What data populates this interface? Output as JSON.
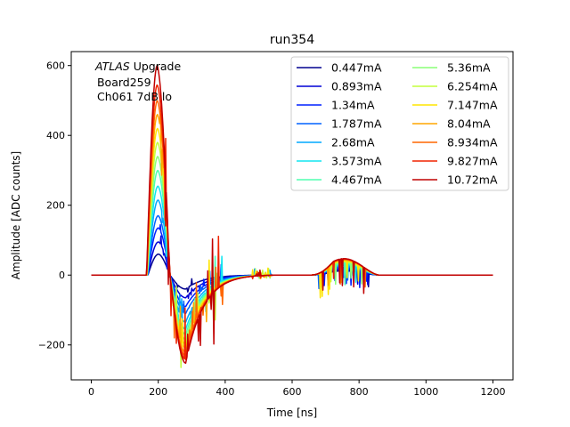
{
  "chart_data": {
    "type": "line",
    "title": "run354",
    "xlabel": "Time [ns]",
    "ylabel": "Amplitude [ADC counts]",
    "xlim": [
      -60,
      1260
    ],
    "ylim": [
      -300,
      640
    ],
    "xticks": [
      0,
      200,
      400,
      600,
      800,
      1000,
      1200
    ],
    "yticks": [
      -200,
      0,
      200,
      400,
      600
    ],
    "xtick_labels": [
      "0",
      "200",
      "400",
      "600",
      "800",
      "1000",
      "1200"
    ],
    "ytick_labels": [
      "−200",
      "0",
      "200",
      "400",
      "600"
    ],
    "grid": false,
    "legend_location": "upper right",
    "legend_columns": 2,
    "annotation": {
      "line1_italic": "ATLAS",
      "line1_rest": " Upgrade",
      "line2": " Board259",
      "line3": " Ch061 7dB lo"
    },
    "series": [
      {
        "name": "0.447mA",
        "color": "#00008f",
        "peak": 60,
        "undershoot": -40,
        "bump": 12
      },
      {
        "name": "0.893mA",
        "color": "#0000d6",
        "peak": 95,
        "undershoot": -65,
        "bump": 16
      },
      {
        "name": "1.34mA",
        "color": "#0020ff",
        "peak": 135,
        "undershoot": -90,
        "bump": 20
      },
      {
        "name": "1.787mA",
        "color": "#0062ff",
        "peak": 170,
        "undershoot": -110,
        "bump": 24
      },
      {
        "name": "2.68mA",
        "color": "#00a8ff",
        "peak": 215,
        "undershoot": -135,
        "bump": 28
      },
      {
        "name": "3.573mA",
        "color": "#10e6f0",
        "peak": 255,
        "undershoot": -155,
        "bump": 31
      },
      {
        "name": "4.467mA",
        "color": "#4effb1",
        "peak": 300,
        "undershoot": -170,
        "bump": 34
      },
      {
        "name": "5.36mA",
        "color": "#89ff77",
        "peak": 340,
        "undershoot": -185,
        "bump": 37
      },
      {
        "name": "6.254mA",
        "color": "#c3ff3c",
        "peak": 380,
        "undershoot": -198,
        "bump": 39
      },
      {
        "name": "7.147mA",
        "color": "#ffe500",
        "peak": 420,
        "undershoot": -210,
        "bump": 41
      },
      {
        "name": "8.04mA",
        "color": "#ffa600",
        "peak": 460,
        "undershoot": -222,
        "bump": 43
      },
      {
        "name": "8.934mA",
        "color": "#ff6600",
        "peak": 500,
        "undershoot": -232,
        "bump": 45
      },
      {
        "name": "9.827mA",
        "color": "#f12300",
        "peak": 545,
        "undershoot": -242,
        "bump": 46
      },
      {
        "name": "10.72mA",
        "color": "#c10000",
        "peak": 600,
        "undershoot": -252,
        "bump": 47
      }
    ]
  }
}
